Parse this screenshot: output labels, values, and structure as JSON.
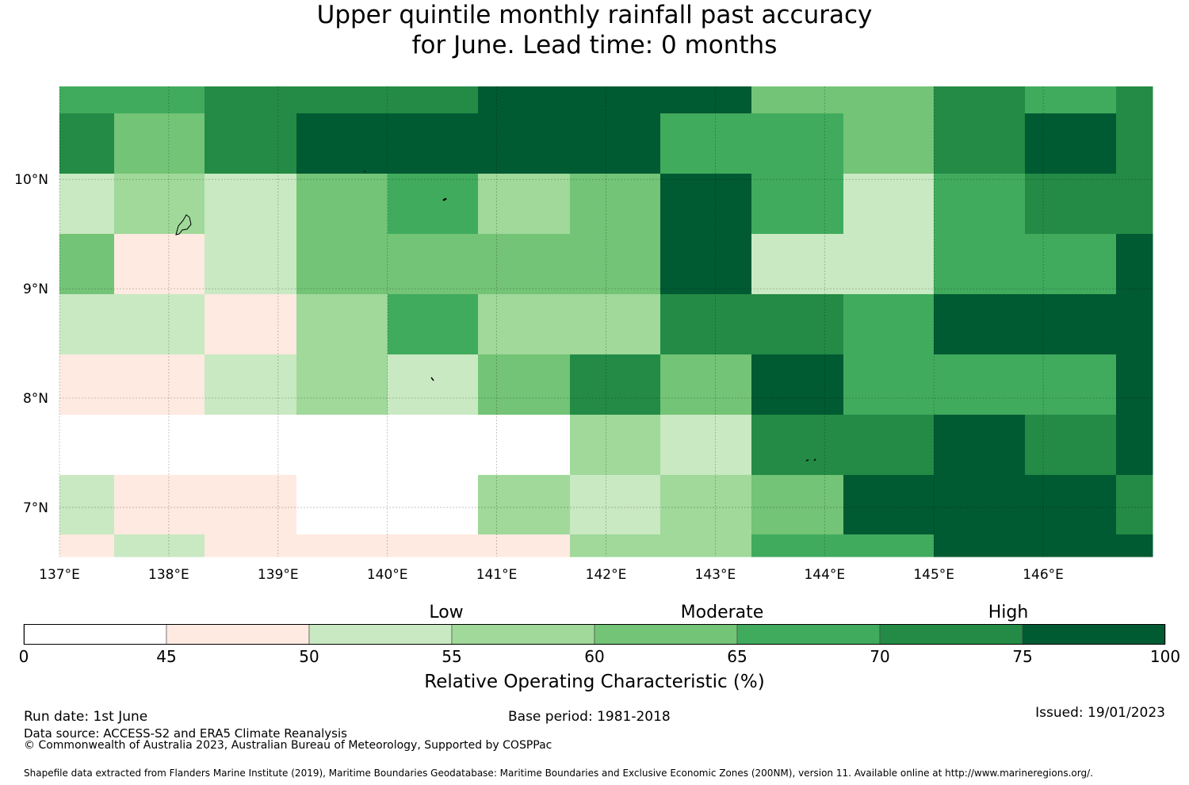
{
  "title": {
    "line1": "Upper quintile monthly rainfall past accuracy",
    "line2": "for June. Lead time: 0 months"
  },
  "map": {
    "x_ticks": [
      "137°E",
      "138°E",
      "139°E",
      "140°E",
      "141°E",
      "142°E",
      "143°E",
      "144°E",
      "145°E",
      "146°E"
    ],
    "y_ticks": [
      "10°N",
      "9°N",
      "8°N",
      "7°N"
    ],
    "region_extent": {
      "lon": [
        137.0,
        147.0
      ],
      "lat": [
        6.55,
        10.85
      ]
    },
    "colors": {
      "0": "#ffffff",
      "1": "#feeae0",
      "2": "#c9e9c2",
      "3": "#a0d99a",
      "4": "#73c476",
      "5": "#40ab5d",
      "6": "#238b45",
      "7": "#005a32"
    },
    "value_class_note_bins": [
      "0-45",
      "45-50",
      "50-55",
      "55-60",
      "60-65",
      "65-70",
      "70-75",
      "75-100"
    ],
    "col_lon_edges": [
      137.0,
      137.5,
      138.33,
      139.17,
      140.0,
      140.83,
      141.67,
      142.5,
      143.33,
      144.17,
      145.0,
      145.83,
      146.67,
      147.0
    ],
    "row_lat_edges": [
      10.85,
      10.6,
      10.05,
      9.5,
      8.95,
      8.4,
      7.85,
      7.3,
      6.75,
      6.55
    ],
    "grid": [
      [
        5,
        5,
        6,
        6,
        6,
        7,
        7,
        7,
        4,
        4,
        6,
        5,
        6
      ],
      [
        6,
        4,
        6,
        7,
        7,
        7,
        7,
        5,
        5,
        4,
        6,
        7,
        6
      ],
      [
        2,
        3,
        2,
        4,
        5,
        3,
        4,
        7,
        5,
        2,
        5,
        6,
        6
      ],
      [
        4,
        1,
        2,
        4,
        4,
        4,
        4,
        7,
        2,
        2,
        5,
        5,
        7
      ],
      [
        2,
        2,
        1,
        3,
        5,
        3,
        3,
        6,
        6,
        5,
        7,
        7,
        7
      ],
      [
        1,
        1,
        2,
        3,
        2,
        4,
        6,
        4,
        7,
        5,
        5,
        5,
        7
      ],
      [
        0,
        0,
        0,
        0,
        0,
        0,
        3,
        2,
        6,
        6,
        7,
        6,
        7
      ],
      [
        2,
        1,
        1,
        0,
        0,
        3,
        2,
        3,
        4,
        7,
        7,
        7,
        6
      ],
      [
        1,
        2,
        1,
        1,
        1,
        1,
        3,
        3,
        5,
        5,
        7,
        7,
        7
      ]
    ]
  },
  "colorbar": {
    "category_labels": [
      "Low",
      "Moderate",
      "High"
    ],
    "tick_labels": [
      "0",
      "45",
      "50",
      "55",
      "60",
      "65",
      "70",
      "75",
      "100"
    ],
    "axis_label": "Relative Operating Characteristic (%)"
  },
  "footer": {
    "run_date": "Run date: 1st June",
    "base_period": "Base period: 1981-2018",
    "issued": "Issued: 19/01/2023",
    "data_source": "Data source: ACCESS-S2 and ERA5 Climate Reanalysis",
    "copyright": "© Commonwealth of Australia 2023, Australian Bureau of Meteorology, Supported by COSPPac",
    "shapefile": "Shapefile data extracted from Flanders Marine Institute (2019), Maritime Boundaries Geodatabase: Maritime Boundaries and Exclusive Economic Zones (200NM), version 11. Available online at http://www.marineregions.org/."
  }
}
